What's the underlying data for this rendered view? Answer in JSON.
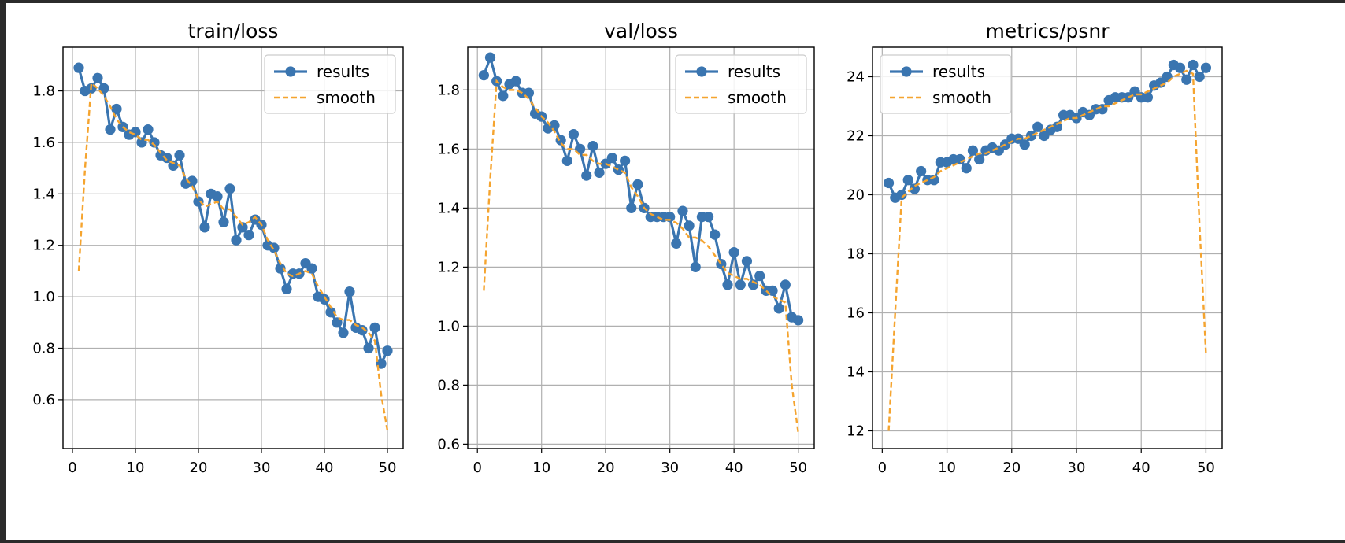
{
  "colors": {
    "results": "#3a75b0",
    "smooth": "#f5a42f",
    "grid": "#b0b0b0"
  },
  "legend": {
    "results_label": "results",
    "smooth_label": "smooth"
  },
  "chart_data": [
    {
      "type": "line",
      "title": "train/loss",
      "xlabel": "",
      "ylabel": "",
      "xlim": [
        -1.5,
        52.5
      ],
      "ylim": [
        0.41,
        1.97
      ],
      "xticks": [
        0,
        10,
        20,
        30,
        40,
        50
      ],
      "yticks": [
        0.6,
        0.8,
        1.0,
        1.2,
        1.4,
        1.6,
        1.8
      ],
      "ytick_decimals": 1,
      "grid": true,
      "legend_position": "top-right",
      "x": [
        1,
        2,
        3,
        4,
        5,
        6,
        7,
        8,
        9,
        10,
        11,
        12,
        13,
        14,
        15,
        16,
        17,
        18,
        19,
        20,
        21,
        22,
        23,
        24,
        25,
        26,
        27,
        28,
        29,
        30,
        31,
        32,
        33,
        34,
        35,
        36,
        37,
        38,
        39,
        40,
        41,
        42,
        43,
        44,
        45,
        46,
        47,
        48,
        49,
        50
      ],
      "series": [
        {
          "name": "results",
          "style": "line-marker",
          "values": [
            1.89,
            1.8,
            1.81,
            1.85,
            1.81,
            1.65,
            1.73,
            1.66,
            1.63,
            1.64,
            1.6,
            1.65,
            1.6,
            1.55,
            1.54,
            1.51,
            1.55,
            1.44,
            1.45,
            1.37,
            1.27,
            1.4,
            1.39,
            1.29,
            1.42,
            1.22,
            1.27,
            1.24,
            1.3,
            1.28,
            1.2,
            1.19,
            1.11,
            1.03,
            1.09,
            1.09,
            1.13,
            1.11,
            1.0,
            0.99,
            0.94,
            0.9,
            0.86,
            1.02,
            0.88,
            0.87,
            0.8,
            0.88,
            0.74,
            0.79
          ]
        },
        {
          "name": "smooth",
          "style": "dashed",
          "values": [
            1.1,
            1.5,
            1.83,
            1.81,
            1.78,
            1.74,
            1.69,
            1.66,
            1.64,
            1.63,
            1.61,
            1.61,
            1.59,
            1.56,
            1.53,
            1.52,
            1.51,
            1.46,
            1.43,
            1.38,
            1.35,
            1.36,
            1.37,
            1.34,
            1.34,
            1.31,
            1.28,
            1.29,
            1.31,
            1.28,
            1.22,
            1.18,
            1.13,
            1.09,
            1.08,
            1.09,
            1.1,
            1.09,
            1.04,
            1.0,
            0.96,
            0.92,
            0.91,
            0.91,
            0.89,
            0.88,
            0.86,
            0.83,
            0.62,
            0.48
          ]
        }
      ]
    },
    {
      "type": "line",
      "title": "val/loss",
      "xlabel": "",
      "ylabel": "",
      "xlim": [
        -1.5,
        52.5
      ],
      "ylim": [
        0.585,
        1.945
      ],
      "xticks": [
        0,
        10,
        20,
        30,
        40,
        50
      ],
      "yticks": [
        0.6,
        0.8,
        1.0,
        1.2,
        1.4,
        1.6,
        1.8
      ],
      "ytick_decimals": 1,
      "grid": true,
      "legend_position": "top-right",
      "x": [
        1,
        2,
        3,
        4,
        5,
        6,
        7,
        8,
        9,
        10,
        11,
        12,
        13,
        14,
        15,
        16,
        17,
        18,
        19,
        20,
        21,
        22,
        23,
        24,
        25,
        26,
        27,
        28,
        29,
        30,
        31,
        32,
        33,
        34,
        35,
        36,
        37,
        38,
        39,
        40,
        41,
        42,
        43,
        44,
        45,
        46,
        47,
        48,
        49,
        50
      ],
      "series": [
        {
          "name": "results",
          "style": "line-marker",
          "values": [
            1.85,
            1.91,
            1.83,
            1.78,
            1.82,
            1.83,
            1.79,
            1.79,
            1.72,
            1.71,
            1.67,
            1.68,
            1.63,
            1.56,
            1.65,
            1.6,
            1.51,
            1.61,
            1.52,
            1.55,
            1.57,
            1.53,
            1.56,
            1.4,
            1.48,
            1.4,
            1.37,
            1.37,
            1.37,
            1.37,
            1.28,
            1.39,
            1.34,
            1.2,
            1.37,
            1.37,
            1.31,
            1.21,
            1.14,
            1.25,
            1.14,
            1.22,
            1.14,
            1.17,
            1.12,
            1.12,
            1.06,
            1.14,
            1.03,
            1.02
          ]
        },
        {
          "name": "smooth",
          "style": "dashed",
          "values": [
            1.12,
            1.5,
            1.83,
            1.81,
            1.8,
            1.8,
            1.79,
            1.77,
            1.74,
            1.71,
            1.69,
            1.66,
            1.62,
            1.6,
            1.6,
            1.58,
            1.58,
            1.56,
            1.55,
            1.55,
            1.54,
            1.53,
            1.52,
            1.47,
            1.44,
            1.4,
            1.38,
            1.37,
            1.36,
            1.36,
            1.35,
            1.33,
            1.3,
            1.3,
            1.29,
            1.27,
            1.24,
            1.21,
            1.18,
            1.17,
            1.16,
            1.16,
            1.15,
            1.14,
            1.12,
            1.1,
            1.09,
            1.08,
            0.8,
            0.64
          ]
        }
      ]
    },
    {
      "type": "line",
      "title": "metrics/psnr",
      "xlabel": "",
      "ylabel": "",
      "xlim": [
        -1.5,
        52.5
      ],
      "ylim": [
        11.4,
        25.0
      ],
      "xticks": [
        0,
        10,
        20,
        30,
        40,
        50
      ],
      "yticks": [
        12,
        14,
        16,
        18,
        20,
        22,
        24
      ],
      "ytick_decimals": 0,
      "grid": true,
      "legend_position": "top-left",
      "x": [
        1,
        2,
        3,
        4,
        5,
        6,
        7,
        8,
        9,
        10,
        11,
        12,
        13,
        14,
        15,
        16,
        17,
        18,
        19,
        20,
        21,
        22,
        23,
        24,
        25,
        26,
        27,
        28,
        29,
        30,
        31,
        32,
        33,
        34,
        35,
        36,
        37,
        38,
        39,
        40,
        41,
        42,
        43,
        44,
        45,
        46,
        47,
        48,
        49,
        50
      ],
      "series": [
        {
          "name": "results",
          "style": "line-marker",
          "values": [
            20.4,
            19.9,
            20.0,
            20.5,
            20.2,
            20.8,
            20.5,
            20.5,
            21.1,
            21.1,
            21.2,
            21.2,
            20.9,
            21.5,
            21.2,
            21.5,
            21.6,
            21.5,
            21.7,
            21.9,
            21.9,
            21.7,
            22.0,
            22.3,
            22.0,
            22.2,
            22.3,
            22.7,
            22.7,
            22.6,
            22.8,
            22.7,
            22.9,
            22.9,
            23.2,
            23.3,
            23.3,
            23.3,
            23.5,
            23.3,
            23.3,
            23.7,
            23.8,
            24.0,
            24.4,
            24.3,
            23.9,
            24.4,
            24.0,
            24.3
          ]
        },
        {
          "name": "smooth",
          "style": "dashed",
          "values": [
            12.0,
            16.0,
            19.9,
            20.1,
            20.3,
            20.4,
            20.5,
            20.6,
            20.8,
            20.9,
            21.0,
            21.1,
            21.2,
            21.3,
            21.4,
            21.4,
            21.5,
            21.6,
            21.7,
            21.8,
            21.9,
            21.9,
            22.0,
            22.1,
            22.2,
            22.3,
            22.4,
            22.5,
            22.6,
            22.6,
            22.7,
            22.8,
            22.9,
            23.0,
            23.0,
            23.1,
            23.2,
            23.3,
            23.4,
            23.4,
            23.5,
            23.6,
            23.7,
            23.8,
            24.0,
            24.1,
            24.2,
            24.1,
            19.0,
            14.6
          ]
        }
      ]
    }
  ]
}
